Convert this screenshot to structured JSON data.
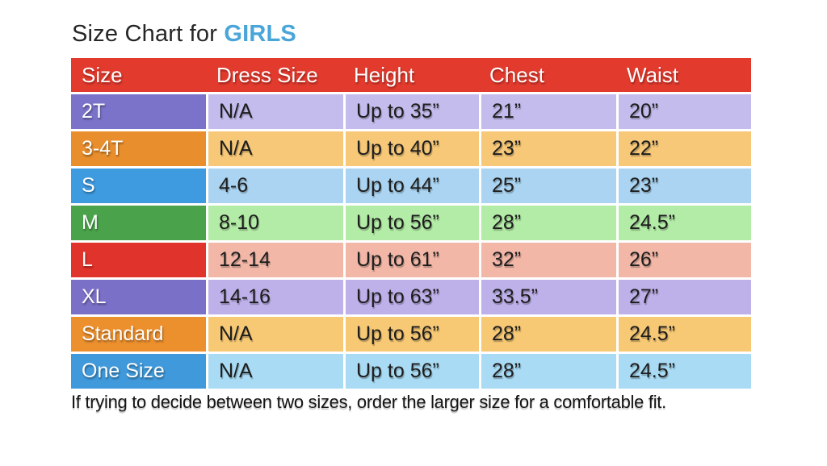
{
  "title": {
    "prefix": "Size Chart for ",
    "highlight": "GIRLS"
  },
  "colors": {
    "header_red": "#e23b2e",
    "title_blue": "#4aa5d8",
    "text_dark": "#1d1d1d",
    "grid_white": "#ffffff"
  },
  "row_colors": [
    {
      "dark": "#7b73c9",
      "light": "#c5bcee"
    },
    {
      "dark": "#e88e2d",
      "light": "#f6c878"
    },
    {
      "dark": "#3f9be0",
      "light": "#aad4f1"
    },
    {
      "dark": "#4aa34b",
      "light": "#b3eca6"
    },
    {
      "dark": "#e0332b",
      "light": "#f2b7a7"
    },
    {
      "dark": "#7b70c8",
      "light": "#beb1ea"
    },
    {
      "dark": "#ec8f2d",
      "light": "#f7c975"
    },
    {
      "dark": "#3f99da",
      "light": "#a9dbf4"
    }
  ],
  "chart_data": {
    "type": "table",
    "title": "Size Chart for GIRLS",
    "columns": [
      "Size",
      "Dress Size",
      "Height",
      "Chest",
      "Waist"
    ],
    "rows": [
      [
        "2T",
        "N/A",
        "Up to 35”",
        "21”",
        "20”"
      ],
      [
        "3-4T",
        "N/A",
        "Up to 40”",
        "23”",
        "22”"
      ],
      [
        "S",
        "4-6",
        "Up to 44”",
        "25”",
        "23”"
      ],
      [
        "M",
        "8-10",
        "Up to 56”",
        "28”",
        "24.5”"
      ],
      [
        "L",
        "12-14",
        "Up to 61”",
        "32”",
        "26”"
      ],
      [
        "XL",
        "14-16",
        "Up to 63”",
        "33.5”",
        "27”"
      ],
      [
        "Standard",
        "N/A",
        "Up to 56”",
        "28”",
        "24.5”"
      ],
      [
        "One Size",
        "N/A",
        "Up to 56”",
        "28”",
        "24.5”"
      ]
    ]
  },
  "footnote": "If trying to decide between two sizes, order the larger size for a comfortable fit."
}
